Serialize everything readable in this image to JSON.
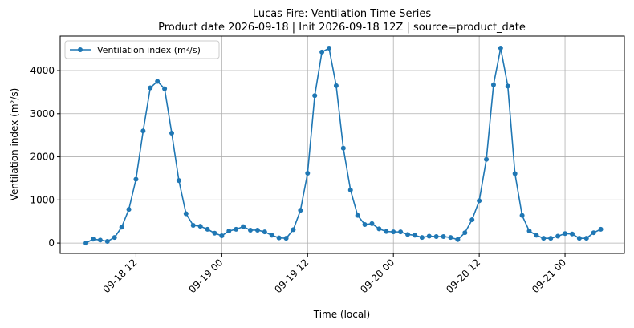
{
  "chart_data": {
    "type": "line",
    "title": "Lucas Fire: Ventilation Time Series",
    "subtitle": "Product date 2026-09-18 | Init 2026-09-18 12Z | source=product_date",
    "x_label": "Time (local)",
    "y_label": "Ventilation index (m²/s)",
    "x": [
      "09-18 05",
      "09-18 06",
      "09-18 07",
      "09-18 08",
      "09-18 09",
      "09-18 10",
      "09-18 11",
      "09-18 12",
      "09-18 13",
      "09-18 14",
      "09-18 15",
      "09-18 16",
      "09-18 17",
      "09-18 18",
      "09-18 19",
      "09-18 20",
      "09-18 21",
      "09-18 22",
      "09-18 23",
      "09-19 00",
      "09-19 01",
      "09-19 02",
      "09-19 03",
      "09-19 04",
      "09-19 05",
      "09-19 06",
      "09-19 07",
      "09-19 08",
      "09-19 09",
      "09-19 10",
      "09-19 11",
      "09-19 12",
      "09-19 13",
      "09-19 14",
      "09-19 15",
      "09-19 16",
      "09-19 17",
      "09-19 18",
      "09-19 19",
      "09-19 20",
      "09-19 21",
      "09-19 22",
      "09-19 23",
      "09-20 00",
      "09-20 01",
      "09-20 02",
      "09-20 03",
      "09-20 04",
      "09-20 05",
      "09-20 06",
      "09-20 07",
      "09-20 08",
      "09-20 09",
      "09-20 10",
      "09-20 11",
      "09-20 12",
      "09-20 13",
      "09-20 14",
      "09-20 15",
      "09-20 16",
      "09-20 17",
      "09-20 18",
      "09-20 19",
      "09-20 20",
      "09-20 21",
      "09-20 22",
      "09-20 23",
      "09-21 00",
      "09-21 01",
      "09-21 02",
      "09-21 03",
      "09-21 04",
      "09-21 05"
    ],
    "series": [
      {
        "name": "Ventilation index (m²/s)",
        "color": "#1f77b4",
        "values": [
          0,
          90,
          70,
          40,
          130,
          370,
          780,
          1480,
          2600,
          3600,
          3750,
          3580,
          2550,
          1450,
          680,
          410,
          390,
          320,
          230,
          170,
          280,
          320,
          380,
          300,
          300,
          260,
          180,
          120,
          110,
          310,
          760,
          1620,
          3420,
          4430,
          4520,
          3650,
          2200,
          1230,
          640,
          430,
          450,
          330,
          270,
          260,
          260,
          200,
          180,
          130,
          160,
          150,
          150,
          130,
          80,
          240,
          540,
          980,
          1940,
          3670,
          4520,
          3640,
          1610,
          640,
          280,
          180,
          110,
          110,
          160,
          220,
          210,
          110,
          110,
          240,
          320
        ]
      }
    ],
    "xticks": [
      "09-18 12",
      "09-19 00",
      "09-19 12",
      "09-20 00",
      "09-20 12",
      "09-21 00"
    ],
    "ylim": [
      -240,
      4800
    ],
    "yticks": [
      0,
      1000,
      2000,
      3000,
      4000
    ],
    "grid": true,
    "legend": "upper left"
  }
}
